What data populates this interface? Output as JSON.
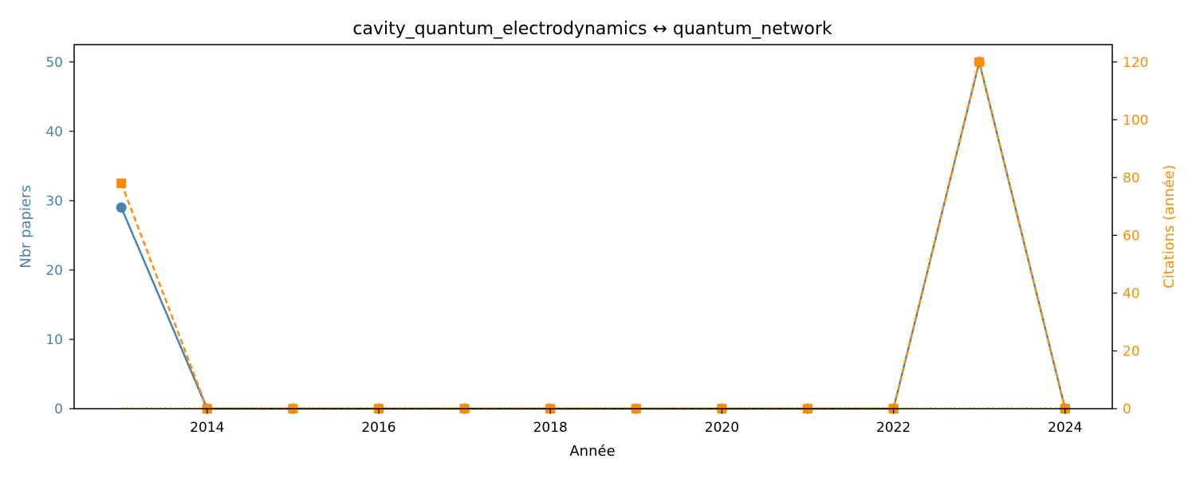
{
  "chart_data": {
    "type": "line",
    "title": "cavity_quantum_electrodynamics  ↔  quantum_network",
    "xlabel": "Année",
    "ylabel_left": "Nbr papiers",
    "ylabel_right": "Citations (année)",
    "x": [
      2013,
      2014,
      2015,
      2016,
      2017,
      2018,
      2019,
      2020,
      2021,
      2022,
      2023,
      2024
    ],
    "xlim": [
      2012.45,
      2024.55
    ],
    "x_ticks": [
      2014,
      2016,
      2018,
      2020,
      2022,
      2024
    ],
    "ylim_left": [
      0,
      52.5
    ],
    "y_ticks_left": [
      0,
      10,
      20,
      30,
      40,
      50
    ],
    "ylim_right": [
      0,
      126
    ],
    "y_ticks_right": [
      0,
      20,
      40,
      60,
      80,
      100,
      120
    ],
    "grid": false,
    "legend": "none",
    "series": [
      {
        "axis": "left",
        "color": "#4682b4",
        "line_style": "solid",
        "marker": "circle",
        "values": [
          29,
          0,
          0,
          0,
          0,
          0,
          0,
          0,
          0,
          0,
          50,
          0
        ]
      },
      {
        "axis": "right",
        "color": "#ff8c00",
        "line_style": "dashed",
        "marker": "square",
        "values": [
          78,
          0,
          0,
          0,
          0,
          0,
          0,
          0,
          0,
          0,
          120,
          0
        ]
      }
    ],
    "colors": {
      "left_axis": "#4682b4",
      "right_axis": "#ff8c00",
      "baseline": "#ffd700"
    }
  }
}
